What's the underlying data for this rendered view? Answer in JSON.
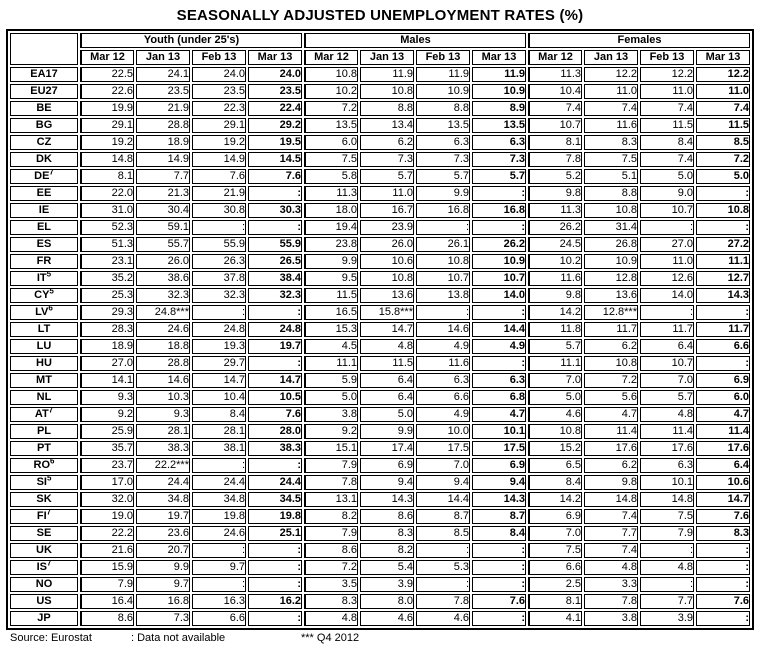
{
  "title": "SEASONALLY ADJUSTED UNEMPLOYMENT RATES (%)",
  "table": {
    "groups": [
      "Youth (under 25's)",
      "Males",
      "Females"
    ],
    "months": [
      "Mar 12",
      "Jan 13",
      "Feb 13",
      "Mar 13"
    ],
    "not_available_symbol": ":",
    "rows": [
      {
        "country": "EA17",
        "sup": "",
        "values": [
          "22.5",
          "24.1",
          "24.0",
          "24.0",
          "10.8",
          "11.9",
          "11.9",
          "11.9",
          "11.3",
          "12.2",
          "12.2",
          "12.2"
        ]
      },
      {
        "country": "EU27",
        "sup": "",
        "values": [
          "22.6",
          "23.5",
          "23.5",
          "23.5",
          "10.2",
          "10.8",
          "10.9",
          "10.9",
          "10.4",
          "11.0",
          "11.0",
          "11.0"
        ]
      },
      {
        "country": "BE",
        "sup": "",
        "values": [
          "19.9",
          "21.9",
          "22.3",
          "22.4",
          "7.2",
          "8.8",
          "8.8",
          "8.9",
          "7.4",
          "7.4",
          "7.4",
          "7.4"
        ]
      },
      {
        "country": "BG",
        "sup": "",
        "values": [
          "29.1",
          "28.8",
          "29.1",
          "29.2",
          "13.5",
          "13.4",
          "13.5",
          "13.5",
          "10.7",
          "11.6",
          "11.5",
          "11.5"
        ]
      },
      {
        "country": "CZ",
        "sup": "",
        "values": [
          "19.2",
          "18.9",
          "19.2",
          "19.5",
          "6.0",
          "6.2",
          "6.3",
          "6.3",
          "8.1",
          "8.3",
          "8.4",
          "8.5"
        ]
      },
      {
        "country": "DK",
        "sup": "",
        "values": [
          "14.8",
          "14.9",
          "14.9",
          "14.5",
          "7.5",
          "7.3",
          "7.3",
          "7.3",
          "7.8",
          "7.5",
          "7.4",
          "7.2"
        ]
      },
      {
        "country": "DE",
        "sup": "7",
        "values": [
          "8.1",
          "7.7",
          "7.6",
          "7.6",
          "5.8",
          "5.7",
          "5.7",
          "5.7",
          "5.2",
          "5.1",
          "5.0",
          "5.0"
        ]
      },
      {
        "country": "EE",
        "sup": "",
        "values": [
          "22.0",
          "21.3",
          "21.9",
          ":",
          "11.3",
          "11.0",
          "9.9",
          ":",
          "9.8",
          "8.8",
          "9.0",
          ":"
        ]
      },
      {
        "country": "IE",
        "sup": "",
        "values": [
          "31.0",
          "30.4",
          "30.8",
          "30.3",
          "18.0",
          "16.7",
          "16.8",
          "16.8",
          "11.3",
          "10.8",
          "10.7",
          "10.8"
        ]
      },
      {
        "country": "EL",
        "sup": "",
        "values": [
          "52.3",
          "59.1",
          ":",
          ":",
          "19.4",
          "23.9",
          ":",
          ":",
          "26.2",
          "31.4",
          ":",
          ":"
        ]
      },
      {
        "country": "ES",
        "sup": "",
        "values": [
          "51.3",
          "55.7",
          "55.9",
          "55.9",
          "23.8",
          "26.0",
          "26.1",
          "26.2",
          "24.5",
          "26.8",
          "27.0",
          "27.2"
        ]
      },
      {
        "country": "FR",
        "sup": "",
        "values": [
          "23.1",
          "26.0",
          "26.3",
          "26.5",
          "9.9",
          "10.6",
          "10.8",
          "10.9",
          "10.2",
          "10.9",
          "11.0",
          "11.1"
        ]
      },
      {
        "country": "IT",
        "sup": "5",
        "values": [
          "35.2",
          "38.6",
          "37.8",
          "38.4",
          "9.5",
          "10.8",
          "10.7",
          "10.7",
          "11.6",
          "12.8",
          "12.6",
          "12.7"
        ]
      },
      {
        "country": "CY",
        "sup": "5",
        "values": [
          "25.3",
          "32.3",
          "32.3",
          "32.3",
          "11.5",
          "13.6",
          "13.8",
          "14.0",
          "9.8",
          "13.6",
          "14.0",
          "14.3"
        ]
      },
      {
        "country": "LV",
        "sup": "6",
        "values": [
          "29.3",
          "24.8***",
          ":",
          ":",
          "16.5",
          "15.8***",
          ":",
          ":",
          "14.2",
          "12.8***",
          ":",
          ":"
        ]
      },
      {
        "country": "LT",
        "sup": "",
        "values": [
          "28.3",
          "24.6",
          "24.8",
          "24.8",
          "15.3",
          "14.7",
          "14.6",
          "14.4",
          "11.8",
          "11.7",
          "11.7",
          "11.7"
        ]
      },
      {
        "country": "LU",
        "sup": "",
        "values": [
          "18.9",
          "18.8",
          "19.3",
          "19.7",
          "4.5",
          "4.8",
          "4.9",
          "4.9",
          "5.7",
          "6.2",
          "6.4",
          "6.6"
        ]
      },
      {
        "country": "HU",
        "sup": "",
        "values": [
          "27.0",
          "28.8",
          "29.7",
          ":",
          "11.1",
          "11.5",
          "11.6",
          ":",
          "11.1",
          "10.8",
          "10.7",
          ":"
        ]
      },
      {
        "country": "MT",
        "sup": "",
        "values": [
          "14.1",
          "14.6",
          "14.7",
          "14.7",
          "5.9",
          "6.4",
          "6.3",
          "6.3",
          "7.0",
          "7.2",
          "7.0",
          "6.9"
        ]
      },
      {
        "country": "NL",
        "sup": "",
        "values": [
          "9.3",
          "10.3",
          "10.4",
          "10.5",
          "5.0",
          "6.4",
          "6.6",
          "6.8",
          "5.0",
          "5.6",
          "5.7",
          "6.0"
        ]
      },
      {
        "country": "AT",
        "sup": "7",
        "values": [
          "9.2",
          "9.3",
          "8.4",
          "7.6",
          "3.8",
          "5.0",
          "4.9",
          "4.7",
          "4.6",
          "4.7",
          "4.8",
          "4.7"
        ]
      },
      {
        "country": "PL",
        "sup": "",
        "values": [
          "25.9",
          "28.1",
          "28.1",
          "28.0",
          "9.2",
          "9.9",
          "10.0",
          "10.1",
          "10.8",
          "11.4",
          "11.4",
          "11.4"
        ]
      },
      {
        "country": "PT",
        "sup": "",
        "values": [
          "35.7",
          "38.3",
          "38.1",
          "38.3",
          "15.1",
          "17.4",
          "17.5",
          "17.5",
          "15.2",
          "17.6",
          "17.6",
          "17.6"
        ]
      },
      {
        "country": "RO",
        "sup": "6",
        "values": [
          "23.7",
          "22.2***",
          ":",
          ":",
          "7.9",
          "6.9",
          "7.0",
          "6.9",
          "6.5",
          "6.2",
          "6.3",
          "6.4"
        ]
      },
      {
        "country": "SI",
        "sup": "5",
        "values": [
          "17.0",
          "24.4",
          "24.4",
          "24.4",
          "7.8",
          "9.4",
          "9.4",
          "9.4",
          "8.4",
          "9.8",
          "10.1",
          "10.6"
        ]
      },
      {
        "country": "SK",
        "sup": "",
        "values": [
          "32.0",
          "34.8",
          "34.8",
          "34.5",
          "13.1",
          "14.3",
          "14.4",
          "14.3",
          "14.2",
          "14.8",
          "14.8",
          "14.7"
        ]
      },
      {
        "country": "FI",
        "sup": "7",
        "values": [
          "19.0",
          "19.7",
          "19.8",
          "19.8",
          "8.2",
          "8.6",
          "8.7",
          "8.7",
          "6.9",
          "7.4",
          "7.5",
          "7.6"
        ]
      },
      {
        "country": "SE",
        "sup": "",
        "values": [
          "22.2",
          "23.6",
          "24.6",
          "25.1",
          "7.9",
          "8.3",
          "8.5",
          "8.4",
          "7.0",
          "7.7",
          "7.9",
          "8.3"
        ]
      },
      {
        "country": "UK",
        "sup": "",
        "values": [
          "21.6",
          "20.7",
          ":",
          ":",
          "8.6",
          "8.2",
          ":",
          ":",
          "7.5",
          "7.4",
          ":",
          ":"
        ]
      },
      {
        "country": "IS",
        "sup": "7",
        "values": [
          "15.9",
          "9.9",
          "9.7",
          ":",
          "7.2",
          "5.4",
          "5.3",
          ":",
          "6.6",
          "4.8",
          "4.8",
          ":"
        ]
      },
      {
        "country": "NO",
        "sup": "",
        "values": [
          "7.9",
          "9.7",
          ":",
          ":",
          "3.5",
          "3.9",
          ":",
          ":",
          "2.5",
          "3.3",
          ":",
          ":"
        ]
      },
      {
        "country": "US",
        "sup": "",
        "values": [
          "16.4",
          "16.8",
          "16.3",
          "16.2",
          "8.3",
          "8.0",
          "7.8",
          "7.6",
          "8.1",
          "7.8",
          "7.7",
          "7.6"
        ]
      },
      {
        "country": "JP",
        "sup": "",
        "values": [
          "8.6",
          "7.3",
          "6.6",
          ":",
          "4.8",
          "4.6",
          "4.6",
          ":",
          "4.1",
          "3.8",
          "3.9",
          ":"
        ]
      }
    ]
  },
  "footer": {
    "source": "Source: Eurostat",
    "not_available": ": Data not available",
    "q4_note": "*** Q4 2012"
  }
}
